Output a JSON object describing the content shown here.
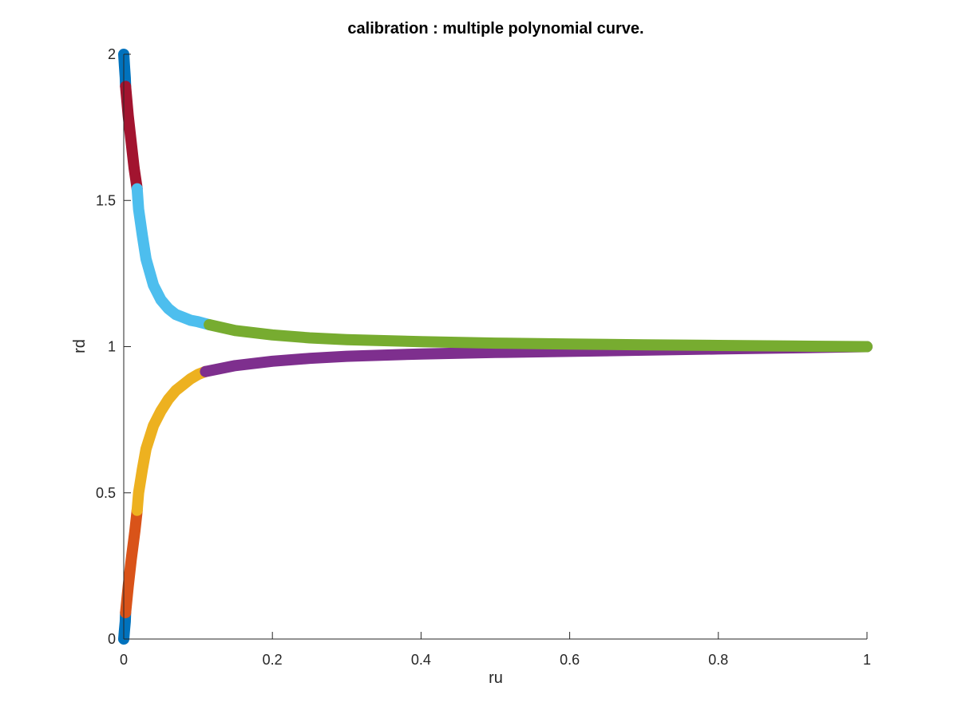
{
  "chart_data": {
    "type": "line",
    "title": "calibration : multiple polynomial curve.",
    "xlabel": "ru",
    "ylabel": "rd",
    "xlim": [
      0,
      1
    ],
    "ylim": [
      0,
      2
    ],
    "xticks": [
      0,
      0.2,
      0.4,
      0.6,
      0.8,
      1
    ],
    "xtick_labels": [
      "0",
      "0.2",
      "0.4",
      "0.6",
      "0.8",
      "1"
    ],
    "yticks": [
      0,
      0.5,
      1,
      1.5,
      2
    ],
    "ytick_labels": [
      "0",
      "0.5",
      "1",
      "1.5",
      "2"
    ],
    "grid": false,
    "legend": "none",
    "series": [
      {
        "color": "#0072BD",
        "x": [
          0,
          0.001,
          0.002,
          0.0025
        ],
        "y": [
          0,
          0.03,
          0.06,
          0.09
        ]
      },
      {
        "color": "#D95319",
        "x": [
          0.0025,
          0.006,
          0.01,
          0.015,
          0.018
        ],
        "y": [
          0.09,
          0.18,
          0.27,
          0.37,
          0.44
        ]
      },
      {
        "color": "#EDB120",
        "x": [
          0.018,
          0.02,
          0.025,
          0.03,
          0.04,
          0.05,
          0.06,
          0.07,
          0.08,
          0.09,
          0.1,
          0.11
        ],
        "y": [
          0.44,
          0.5,
          0.58,
          0.65,
          0.73,
          0.78,
          0.82,
          0.85,
          0.87,
          0.89,
          0.905,
          0.915
        ]
      },
      {
        "color": "#7E2F8E",
        "x": [
          0.11,
          0.15,
          0.2,
          0.25,
          0.3,
          0.4,
          0.5,
          0.6,
          0.7,
          0.8,
          0.9,
          1.0
        ],
        "y": [
          0.915,
          0.935,
          0.95,
          0.96,
          0.967,
          0.975,
          0.98,
          0.984,
          0.988,
          0.992,
          0.996,
          1.0
        ]
      },
      {
        "color": "#0072BD",
        "x": [
          0,
          0.001,
          0.002,
          0.0025
        ],
        "y": [
          2.0,
          1.96,
          1.92,
          1.89
        ]
      },
      {
        "color": "#A2142F",
        "x": [
          0.0025,
          0.006,
          0.01,
          0.014,
          0.018
        ],
        "y": [
          1.89,
          1.79,
          1.7,
          1.61,
          1.54
        ]
      },
      {
        "color": "#4DBEEE",
        "x": [
          0.018,
          0.02,
          0.025,
          0.03,
          0.04,
          0.05,
          0.06,
          0.07,
          0.08,
          0.09,
          0.1,
          0.115
        ],
        "y": [
          1.54,
          1.47,
          1.38,
          1.3,
          1.21,
          1.16,
          1.13,
          1.11,
          1.1,
          1.09,
          1.085,
          1.075
        ]
      },
      {
        "color": "#77AC30",
        "x": [
          0.115,
          0.15,
          0.2,
          0.25,
          0.3,
          0.4,
          0.5,
          0.6,
          0.7,
          0.8,
          0.9,
          1.0
        ],
        "y": [
          1.075,
          1.055,
          1.04,
          1.03,
          1.024,
          1.017,
          1.012,
          1.009,
          1.006,
          1.004,
          1.002,
          1.0
        ]
      }
    ]
  }
}
